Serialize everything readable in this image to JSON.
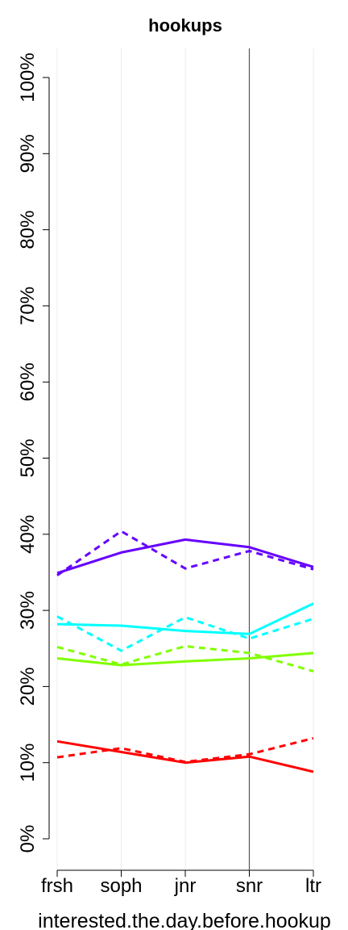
{
  "chart_data": {
    "type": "line",
    "title": "hookups",
    "xlabel": "interested.the.day.before.hookup",
    "ylabel": "",
    "categories": [
      "frsh",
      "soph",
      "jnr",
      "snr",
      "ltr"
    ],
    "yticks": [
      "0%",
      "10%",
      "20%",
      "30%",
      "40%",
      "50%",
      "60%",
      "70%",
      "80%",
      "90%",
      "100%"
    ],
    "ylim": [
      -3.5,
      104
    ],
    "grid": "vertical",
    "reference_line_at": "snr",
    "series": [
      {
        "color": "#6600ff",
        "dash": "solid",
        "values": [
          34.9,
          37.6,
          39.3,
          38.3,
          35.7
        ]
      },
      {
        "color": "#6600ff",
        "dash": "dashed",
        "values": [
          34.6,
          40.4,
          35.5,
          37.8,
          35.4
        ]
      },
      {
        "color": "#00ffff",
        "dash": "solid",
        "values": [
          28.2,
          28.0,
          27.3,
          26.9,
          30.9
        ]
      },
      {
        "color": "#00ffff",
        "dash": "dashed",
        "values": [
          29.2,
          24.7,
          29.1,
          26.3,
          28.9
        ]
      },
      {
        "color": "#80ff00",
        "dash": "solid",
        "values": [
          23.7,
          22.8,
          23.3,
          23.7,
          24.4
        ]
      },
      {
        "color": "#80ff00",
        "dash": "dashed",
        "values": [
          25.2,
          22.9,
          25.3,
          24.4,
          22.0
        ]
      },
      {
        "color": "#ff0000",
        "dash": "solid",
        "values": [
          12.8,
          11.4,
          10.0,
          10.8,
          8.8
        ]
      },
      {
        "color": "#ff0000",
        "dash": "dashed",
        "values": [
          10.7,
          11.9,
          10.1,
          11.1,
          13.2
        ]
      }
    ]
  }
}
